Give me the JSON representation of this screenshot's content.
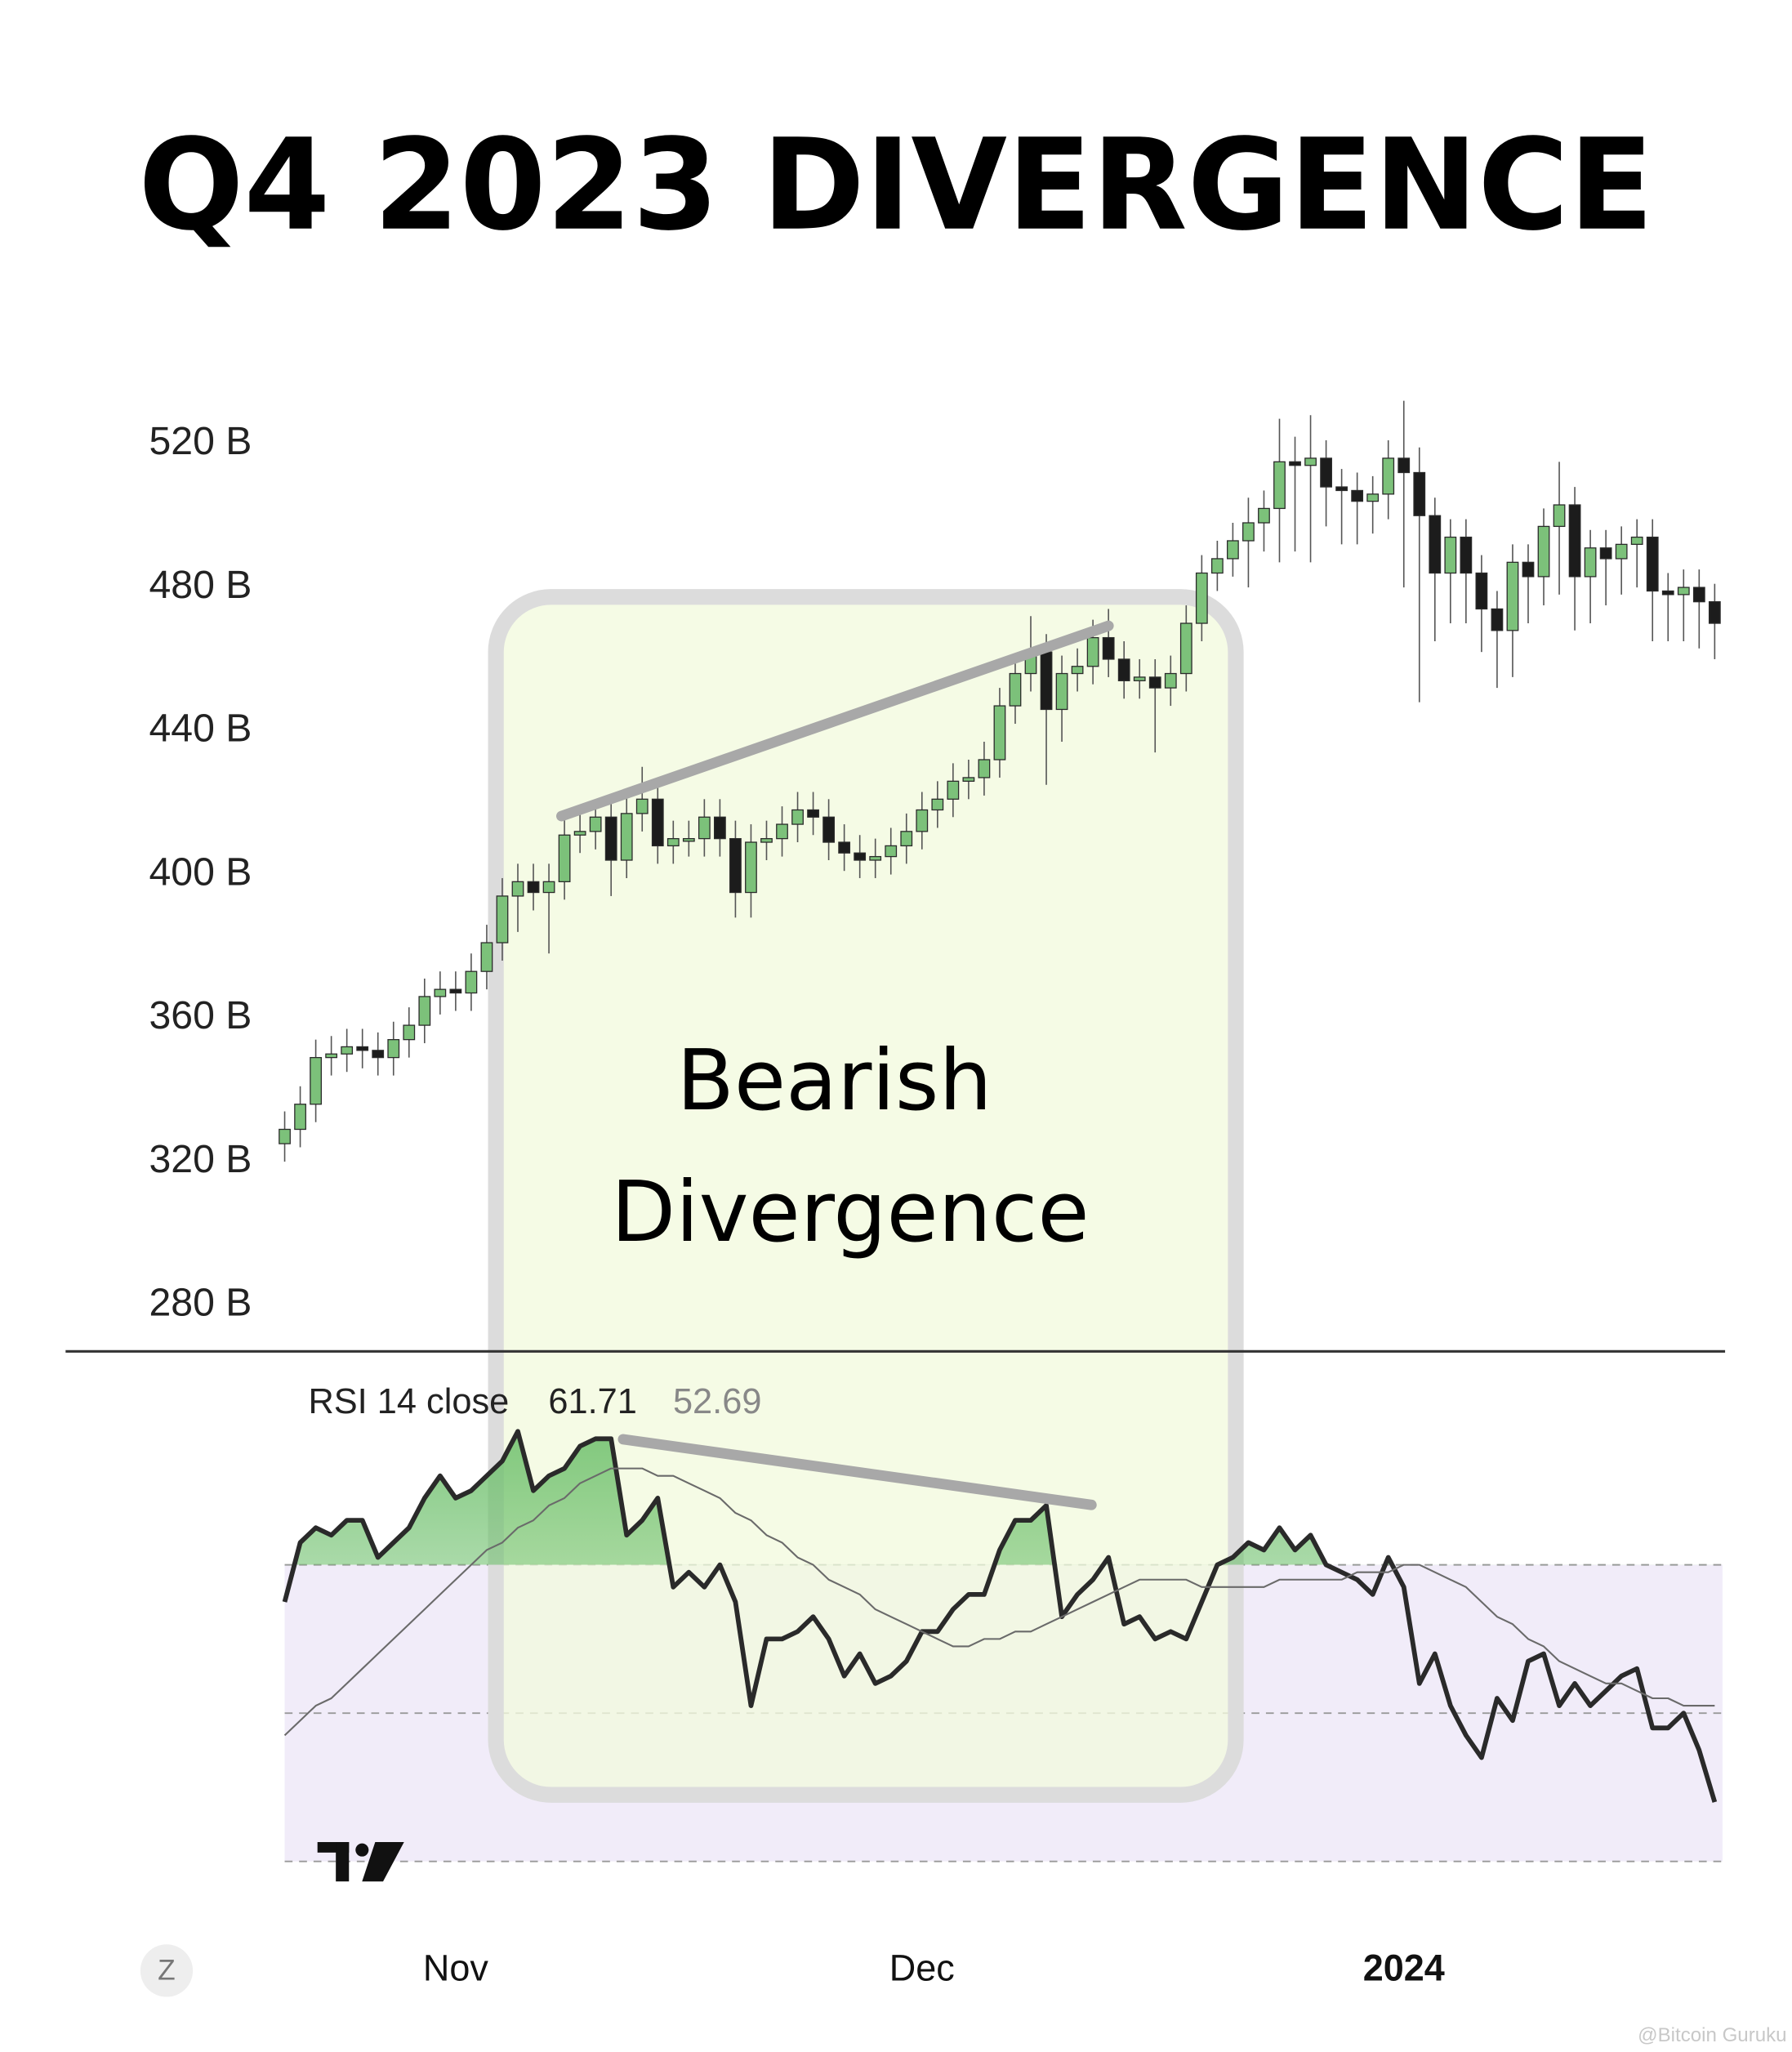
{
  "chart_data": [
    {
      "type": "candlestick",
      "title": "Q4 2023 DIVERGENCE",
      "annotation": [
        "Bearish",
        "Divergence"
      ],
      "x": [
        0,
        1,
        2,
        3,
        4,
        5,
        6,
        7,
        8,
        9,
        10,
        11,
        12,
        13,
        14,
        15,
        16,
        17,
        18,
        19,
        20,
        21,
        22,
        23,
        24,
        25,
        26,
        27,
        28,
        29,
        30,
        31,
        32,
        33,
        34,
        35,
        36,
        37,
        38,
        39,
        40,
        41,
        42,
        43,
        44,
        45,
        46,
        47,
        48,
        49,
        50,
        51,
        52,
        53,
        54,
        55,
        56,
        57,
        58,
        59,
        60,
        61,
        62,
        63,
        64,
        65,
        66,
        67,
        68,
        69,
        70,
        71,
        72,
        73,
        74,
        75,
        76,
        77,
        78,
        79,
        80,
        81,
        82,
        83,
        84,
        85,
        86,
        87,
        88,
        89,
        90,
        91,
        92
      ],
      "open": [
        325,
        329,
        336,
        349,
        350,
        352,
        351,
        349,
        354,
        358,
        366,
        368,
        367,
        373,
        381,
        394,
        398,
        395,
        398,
        411,
        412,
        416,
        404,
        417,
        421,
        408,
        410,
        410,
        416,
        410,
        395,
        409,
        410,
        414,
        418,
        416,
        409,
        406,
        404,
        405,
        408,
        412,
        418,
        421,
        426,
        427,
        432,
        447,
        456,
        462,
        446,
        456,
        458,
        466,
        460,
        454,
        455,
        452,
        456,
        470,
        484,
        488,
        493,
        498,
        502,
        515,
        514,
        516,
        508,
        507,
        504,
        506,
        516,
        512,
        500,
        484,
        494,
        484,
        474,
        468,
        487,
        483,
        497,
        503,
        483,
        491,
        488,
        492,
        494,
        479,
        478,
        480,
        476
      ],
      "high": [
        334,
        341,
        354,
        355,
        357,
        357,
        356,
        359,
        363,
        371,
        373,
        373,
        378,
        386,
        399,
        403,
        403,
        403,
        416,
        417,
        421,
        421,
        422,
        430,
        426,
        415,
        415,
        421,
        421,
        415,
        414,
        415,
        419,
        423,
        423,
        421,
        414,
        411,
        410,
        413,
        417,
        423,
        426,
        431,
        432,
        437,
        452,
        461,
        472,
        467,
        461,
        463,
        471,
        474,
        465,
        460,
        460,
        461,
        475,
        489,
        493,
        498,
        505,
        507,
        527,
        522,
        528,
        521,
        513,
        512,
        511,
        521,
        532,
        519,
        505,
        499,
        499,
        489,
        479,
        492,
        492,
        502,
        515,
        508,
        496,
        496,
        497,
        499,
        499,
        484,
        485,
        485,
        481
      ],
      "low": [
        320,
        324,
        331,
        344,
        345,
        346,
        344,
        344,
        349,
        353,
        361,
        362,
        362,
        368,
        376,
        384,
        390,
        378,
        393,
        406,
        407,
        394,
        399,
        412,
        403,
        403,
        405,
        405,
        405,
        388,
        388,
        404,
        405,
        409,
        411,
        404,
        401,
        399,
        399,
        400,
        403,
        407,
        413,
        416,
        421,
        422,
        427,
        442,
        451,
        425,
        437,
        451,
        453,
        455,
        449,
        449,
        434,
        447,
        451,
        465,
        479,
        483,
        480,
        490,
        487,
        490,
        487,
        497,
        492,
        492,
        495,
        499,
        480,
        448,
        465,
        470,
        470,
        462,
        452,
        455,
        470,
        475,
        478,
        468,
        470,
        475,
        478,
        480,
        465,
        465,
        465,
        463,
        460
      ],
      "close": [
        329,
        336,
        349,
        350,
        352,
        351,
        349,
        354,
        358,
        366,
        368,
        367,
        373,
        381,
        394,
        398,
        395,
        398,
        411,
        412,
        416,
        404,
        417,
        421,
        408,
        410,
        410,
        416,
        410,
        395,
        409,
        410,
        414,
        418,
        416,
        409,
        406,
        404,
        405,
        408,
        412,
        418,
        421,
        426,
        427,
        432,
        447,
        456,
        462,
        446,
        456,
        458,
        466,
        460,
        454,
        455,
        452,
        456,
        470,
        484,
        488,
        493,
        498,
        502,
        515,
        514,
        516,
        508,
        507,
        504,
        506,
        516,
        512,
        500,
        484,
        494,
        484,
        474,
        468,
        487,
        483,
        497,
        503,
        483,
        491,
        488,
        492,
        494,
        479,
        478,
        480,
        476,
        470
      ],
      "up_color": "#7cc17a",
      "down_color": "#1c1c1c",
      "xlim": [
        0,
        92.5
      ],
      "ylim": [
        277,
        534
      ],
      "yticks": [
        {
          "value": 520,
          "label": "520 B"
        },
        {
          "value": 480,
          "label": "480 B"
        },
        {
          "value": 440,
          "label": "440 B"
        },
        {
          "value": 400,
          "label": "400 B"
        },
        {
          "value": 360,
          "label": "360 B"
        },
        {
          "value": 320,
          "label": "320 B"
        },
        {
          "value": 280,
          "label": "280 B"
        }
      ]
    },
    {
      "type": "line",
      "indicator_label": "RSI 14 close",
      "readout": [
        61.71,
        52.69
      ],
      "x": [
        0,
        1,
        2,
        3,
        4,
        5,
        6,
        7,
        8,
        9,
        10,
        11,
        12,
        13,
        14,
        15,
        16,
        17,
        18,
        19,
        20,
        21,
        22,
        23,
        24,
        25,
        26,
        27,
        28,
        29,
        30,
        31,
        32,
        33,
        34,
        35,
        36,
        37,
        38,
        39,
        40,
        41,
        42,
        43,
        44,
        45,
        46,
        47,
        48,
        49,
        50,
        51,
        52,
        53,
        54,
        55,
        56,
        57,
        58,
        59,
        60,
        61,
        62,
        63,
        64,
        65,
        66,
        67,
        68,
        69,
        70,
        71,
        72,
        73,
        74,
        75,
        76,
        77,
        78,
        79,
        80,
        81,
        82,
        83,
        84,
        85,
        86,
        87,
        88,
        89,
        90,
        91,
        92
      ],
      "series": [
        {
          "color": "#2a2a2a",
          "values": [
            65,
            73,
            75,
            74,
            76,
            76,
            71,
            73,
            75,
            79,
            82,
            79,
            80,
            82,
            84,
            88,
            80,
            82,
            83,
            86,
            87,
            87,
            74,
            76,
            79,
            67,
            69,
            67,
            70,
            65,
            51,
            60,
            60,
            61,
            63,
            60,
            55,
            58,
            54,
            55,
            57,
            61,
            61,
            64,
            66,
            66,
            72,
            76,
            76,
            78,
            63,
            66,
            68,
            71,
            62,
            63,
            60,
            61,
            60,
            65,
            70,
            71,
            73,
            72,
            75,
            72,
            74,
            70,
            69,
            68,
            66,
            71,
            67,
            54,
            58,
            51,
            47,
            44,
            52,
            49,
            57,
            58,
            51,
            54,
            51,
            53,
            55,
            56,
            48,
            48,
            50,
            45,
            38
          ]
        },
        {
          "color": "#6a6a6a",
          "values": [
            47,
            49,
            51,
            52,
            54,
            56,
            58,
            60,
            62,
            64,
            66,
            68,
            70,
            72,
            73,
            75,
            76,
            78,
            79,
            81,
            82,
            83,
            83,
            83,
            82,
            82,
            81,
            80,
            79,
            77,
            76,
            74,
            73,
            71,
            70,
            68,
            67,
            66,
            64,
            63,
            62,
            61,
            60,
            59,
            59,
            60,
            60,
            61,
            61,
            62,
            63,
            64,
            65,
            66,
            67,
            68,
            68,
            68,
            68,
            67,
            67,
            67,
            67,
            67,
            68,
            68,
            68,
            68,
            68,
            69,
            69,
            69,
            70,
            70,
            69,
            68,
            67,
            65,
            63,
            62,
            60,
            59,
            57,
            56,
            55,
            54,
            54,
            53,
            52,
            52,
            51,
            51,
            51
          ]
        }
      ],
      "fill_color": "#7cc17a",
      "band_color": "#f1ecf9",
      "xlim": [
        0,
        92.5
      ],
      "ylim": [
        25,
        91
      ],
      "yticks": [
        30,
        50,
        70
      ],
      "xticks": [
        {
          "value": 11,
          "label": "Nov"
        },
        {
          "value": 41,
          "label": "Dec"
        },
        {
          "value": 72,
          "label": "2024"
        }
      ]
    }
  ],
  "zoom_button": "Z",
  "watermark": "@Bitcoin Guruku"
}
